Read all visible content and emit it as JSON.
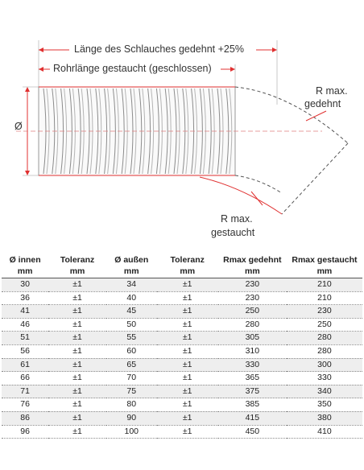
{
  "figure": {
    "labels": {
      "length_stretched": "Länge des Schlauches gedehnt +25%",
      "length_compressed": "Rohrlänge gestaucht (geschlossen)",
      "diameter": "Ø",
      "rmax_stretched_line1": "R max.",
      "rmax_stretched_line2": "gedehnt",
      "rmax_compressed_line1": "R max.",
      "rmax_compressed_line2": "gestaucht"
    }
  },
  "table": {
    "headers": [
      "Ø innen",
      "Toleranz",
      "Ø außen",
      "Toleranz",
      "Rmax gedehnt",
      "Rmax gestaucht"
    ],
    "units": [
      "mm",
      "mm",
      "mm",
      "mm",
      "mm",
      "mm"
    ],
    "rows": [
      [
        "30",
        "±1",
        "34",
        "±1",
        "230",
        "210"
      ],
      [
        "36",
        "±1",
        "40",
        "±1",
        "230",
        "210"
      ],
      [
        "41",
        "±1",
        "45",
        "±1",
        "250",
        "230"
      ],
      [
        "46",
        "±1",
        "50",
        "±1",
        "280",
        "250"
      ],
      [
        "51",
        "±1",
        "55",
        "±1",
        "305",
        "280"
      ],
      [
        "56",
        "±1",
        "60",
        "±1",
        "310",
        "280"
      ],
      [
        "61",
        "±1",
        "65",
        "±1",
        "330",
        "300"
      ],
      [
        "66",
        "±1",
        "70",
        "±1",
        "365",
        "330"
      ],
      [
        "71",
        "±1",
        "75",
        "±1",
        "375",
        "340"
      ],
      [
        "76",
        "±1",
        "80",
        "±1",
        "385",
        "350"
      ],
      [
        "86",
        "±1",
        "90",
        "±1",
        "415",
        "380"
      ],
      [
        "96",
        "±1",
        "100",
        "±1",
        "450",
        "410"
      ]
    ]
  }
}
